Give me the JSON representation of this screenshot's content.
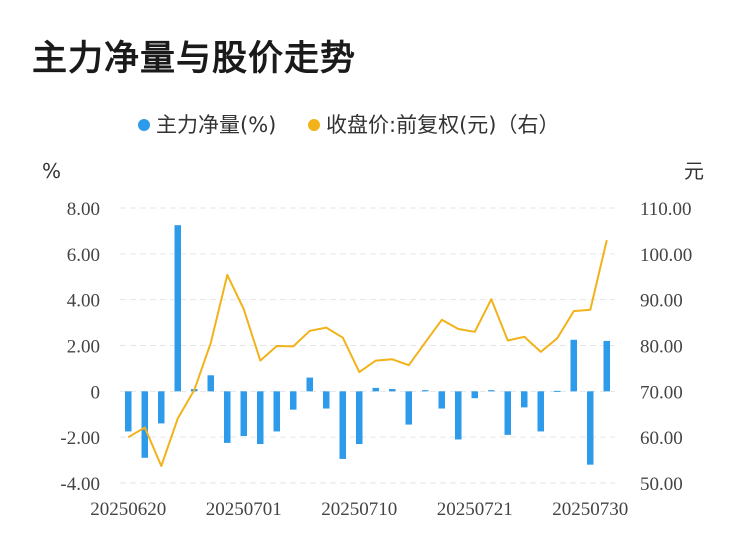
{
  "title": "主力净量与股价走势",
  "colors": {
    "bar": "#2d9bea",
    "line": "#f2b21a",
    "grid": "#e6e6e6"
  },
  "chart_data": {
    "type": "bar+line",
    "title": "主力净量与股价走势",
    "legend_position": "top-center",
    "grid": true,
    "left_axis": {
      "unit": "%",
      "min": -4,
      "max": 8,
      "ticks": [
        "8.00",
        "6.00",
        "4.00",
        "2.00",
        "0",
        "-2.00",
        "-4.00"
      ]
    },
    "right_axis": {
      "unit": "元",
      "min": 50,
      "max": 110,
      "ticks": [
        "110.00",
        "100.00",
        "90.00",
        "80.00",
        "70.00",
        "60.00",
        "50.00"
      ]
    },
    "x_tick_labels": [
      "20250620",
      "20250701",
      "20250710",
      "20250721",
      "20250730"
    ],
    "x_tick_label_indices": [
      0,
      7,
      14,
      21,
      28
    ],
    "series": [
      {
        "name": "主力净量(%)",
        "type": "bar",
        "axis": "left",
        "values": [
          -1.75,
          -2.9,
          -1.4,
          7.25,
          0.1,
          0.7,
          -2.25,
          -1.95,
          -2.3,
          -1.75,
          -0.8,
          0.6,
          -0.75,
          -2.95,
          -2.3,
          0.15,
          0.1,
          -1.45,
          0.05,
          -0.75,
          -2.1,
          -0.3,
          0.05,
          -1.9,
          -0.7,
          -1.75,
          0.02,
          2.25,
          -3.2,
          2.2
        ]
      },
      {
        "name": "收盘价:前复权(元)（右）",
        "type": "line",
        "axis": "right",
        "values": [
          60.0,
          62.1,
          53.7,
          64.1,
          70.3,
          80.6,
          95.4,
          87.9,
          76.7,
          79.9,
          79.8,
          83.2,
          83.9,
          81.7,
          74.2,
          76.7,
          77.0,
          75.7,
          80.7,
          85.6,
          83.6,
          83.0,
          90.1,
          81.1,
          81.9,
          78.6,
          81.6,
          87.5,
          87.8,
          103.0
        ]
      }
    ]
  }
}
